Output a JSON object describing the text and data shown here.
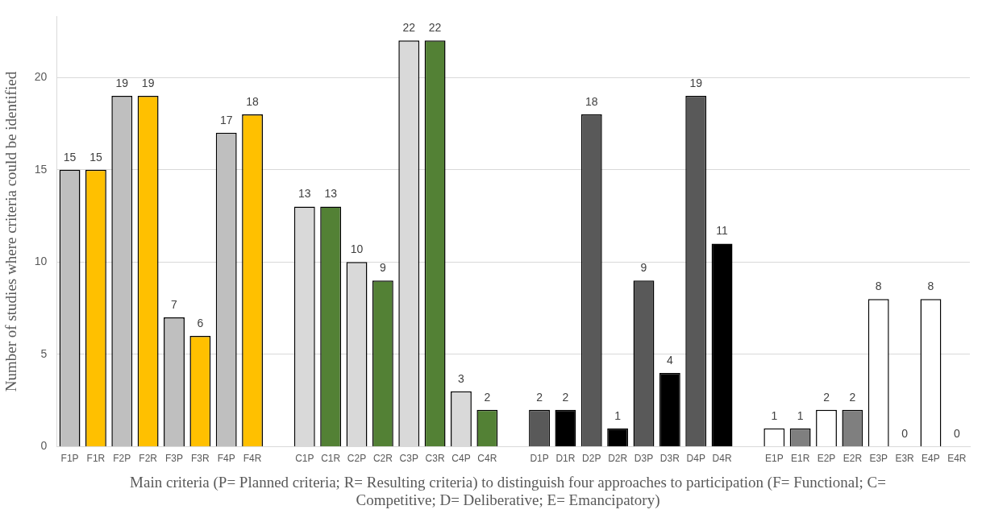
{
  "chart_data": {
    "type": "bar",
    "xlabel": "Main criteria (P= Planned criteria; R= Resulting criteria) to distinguish four approaches to participation (F= Functional; C= Competitive; D= Deliberative; E= Emancipatory)",
    "ylabel": "Number of studies where criteria could be identified",
    "categories": [
      "F1P",
      "F1R",
      "F2P",
      "F2R",
      "F3P",
      "F3R",
      "F4P",
      "F4R",
      null,
      "C1P",
      "C1R",
      "C2P",
      "C2R",
      "C3P",
      "C3R",
      "C4P",
      "C4R",
      null,
      "D1P",
      "D1R",
      "D2P",
      "D2R",
      "D3P",
      "D3R",
      "D4P",
      "D4R",
      null,
      "E1P",
      "E1R",
      "E2P",
      "E2R",
      "E3P",
      "E3R",
      "E4P",
      "E4R"
    ],
    "values": [
      15,
      15,
      19,
      19,
      7,
      6,
      17,
      18,
      null,
      13,
      13,
      10,
      9,
      22,
      22,
      3,
      2,
      null,
      2,
      2,
      18,
      1,
      9,
      4,
      19,
      11,
      null,
      1,
      1,
      2,
      2,
      8,
      0,
      8,
      0
    ],
    "colors": [
      "#bfbfbf",
      "#ffc000",
      "#bfbfbf",
      "#ffc000",
      "#bfbfbf",
      "#ffc000",
      "#bfbfbf",
      "#ffc000",
      "#ffffff",
      "#d9d9d9",
      "#538135",
      "#d9d9d9",
      "#538135",
      "#d9d9d9",
      "#538135",
      "#d9d9d9",
      "#538135",
      "#ffffff",
      "#595959",
      "#000000",
      "#595959",
      "#000000",
      "#595959",
      "#000000",
      "#595959",
      "#000000",
      "#ffffff",
      "#ffffff",
      "#7f7f7f",
      "#ffffff",
      "#7f7f7f",
      "#ffffff",
      "#7f7f7f",
      "#ffffff",
      "#7f7f7f"
    ],
    "ylim": [
      0,
      23.3
    ],
    "yticks": [
      0,
      5,
      10,
      15,
      20
    ],
    "grid": "y",
    "data_labels": true
  }
}
